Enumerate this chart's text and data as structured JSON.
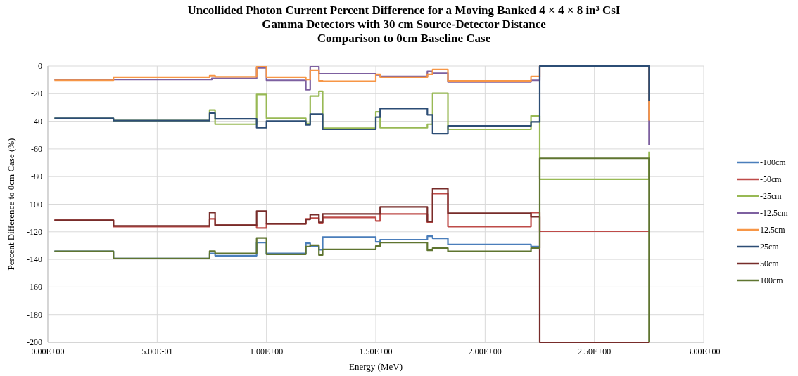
{
  "chart_data": {
    "type": "step",
    "title": "Uncollided Photon Current Percent Difference for a Moving Banked 4 × 4 × 8 in³ CsI Gamma Detectors with 30 cm Source-Detector Distance",
    "subtitle": "Comparison to 0cm Baseline Case",
    "xlabel": "Energy (MeV)",
    "ylabel": "Percent Difference to 0cm Case (%)",
    "xlim": [
      0,
      3
    ],
    "xticks": [
      {
        "value": 0,
        "label": "0.00E+00"
      },
      {
        "value": 0.5,
        "label": "5.00E-01"
      },
      {
        "value": 1,
        "label": "1.00E+00"
      },
      {
        "value": 1.5,
        "label": "1.50E+00"
      },
      {
        "value": 2,
        "label": "2.00E+00"
      },
      {
        "value": 2.5,
        "label": "2.50E+00"
      },
      {
        "value": 3,
        "label": "3.00E+00"
      }
    ],
    "ylim": [
      -200,
      0
    ],
    "yticks": [
      -200,
      -180,
      -160,
      -140,
      -120,
      -100,
      -80,
      -60,
      -40,
      -20,
      0
    ],
    "grid": true,
    "legend": "right",
    "series": [
      {
        "name": "-100cm",
        "color": "#4a7ebb",
        "x": [
          0.03,
          0.3,
          0.74,
          0.75,
          0.765,
          0.955,
          1.0,
          1.18,
          1.2,
          1.24,
          1.257,
          1.5,
          1.52,
          1.736,
          1.76,
          1.83,
          2.21,
          2.25
        ],
        "values": [
          -134.2,
          -139.3,
          -135.7,
          -135.7,
          -137.3,
          -127.8,
          -135.7,
          -128.3,
          -130.7,
          -133,
          -123.8,
          -127.3,
          -125.7,
          -123.2,
          -124.7,
          -129.2,
          -130.7,
          -130.7
        ]
      },
      {
        "name": "-50cm",
        "color": "#be4b48",
        "x": [
          0.03,
          0.3,
          0.74,
          0.75,
          0.765,
          0.955,
          1.0,
          1.18,
          1.2,
          1.24,
          1.257,
          1.5,
          1.52,
          1.736,
          1.76,
          1.83,
          2.21,
          2.25,
          2.75
        ],
        "values": [
          -111.6,
          -116.2,
          -110.6,
          -110.6,
          -115.2,
          -117.2,
          -114.2,
          -110.6,
          -110.1,
          -114,
          -109.6,
          -112.1,
          -107.1,
          -113.2,
          -92.3,
          -116.2,
          -106,
          -119.6,
          -119.6
        ]
      },
      {
        "name": "-25cm",
        "color": "#98b954",
        "x": [
          0.03,
          0.3,
          0.74,
          0.75,
          0.765,
          0.955,
          1.0,
          1.18,
          1.2,
          1.24,
          1.257,
          1.5,
          1.52,
          1.736,
          1.76,
          1.83,
          2.21,
          2.25,
          2.75
        ],
        "values": [
          -38,
          -39.5,
          -31.9,
          -31.9,
          -42.1,
          -20.5,
          -37.8,
          -41.6,
          -21.7,
          -18.3,
          -44.9,
          -33.1,
          -44.6,
          -42.1,
          -19.7,
          -45.8,
          -36.1,
          -81.9,
          -62
        ]
      },
      {
        "name": "-12.5cm",
        "color": "#7d60a0",
        "x": [
          0.03,
          0.3,
          0.74,
          0.75,
          0.765,
          0.955,
          1.0,
          1.18,
          1.2,
          1.24,
          1.257,
          1.5,
          1.52,
          1.736,
          1.76,
          1.83,
          2.21,
          2.25,
          2.75
        ],
        "values": [
          -9.8,
          -9.8,
          -9.8,
          -9,
          -9,
          -1.4,
          -10.3,
          -17.1,
          -0.5,
          -5.6,
          -5.6,
          -6.4,
          -7.6,
          -3.9,
          -5.3,
          -11.5,
          -10.3,
          0,
          -57
        ]
      },
      {
        "name": "12.5cm",
        "color": "#f79646",
        "x": [
          0.03,
          0.3,
          0.74,
          0.75,
          0.765,
          0.955,
          1.0,
          1.18,
          1.2,
          1.24,
          1.257,
          1.5,
          1.52,
          1.736,
          1.76,
          1.83,
          2.21,
          2.25,
          2.75
        ],
        "values": [
          -10.3,
          -8.1,
          -7,
          -7,
          -7.8,
          -0.5,
          -8.1,
          -9.8,
          -3,
          -10.7,
          -11,
          -6,
          -8.1,
          -6,
          -2.5,
          -10.7,
          -7.6,
          0,
          -39.5
        ]
      },
      {
        "name": "25cm",
        "color": "#2c4d75",
        "x": [
          0.03,
          0.3,
          0.74,
          0.75,
          0.765,
          0.955,
          1.0,
          1.18,
          1.2,
          1.24,
          1.257,
          1.5,
          1.52,
          1.736,
          1.76,
          1.83,
          2.21,
          2.25,
          2.75
        ],
        "values": [
          -37.8,
          -39.5,
          -34.1,
          -34.1,
          -38.2,
          -44.6,
          -39.9,
          -42.6,
          -34.8,
          -34.8,
          -45.8,
          -37,
          -30.7,
          -35.3,
          -48.9,
          -43.3,
          -40.4,
          0,
          -25
        ]
      },
      {
        "name": "50cm",
        "color": "#772c2a",
        "x": [
          0.03,
          0.3,
          0.74,
          0.75,
          0.765,
          0.955,
          1.0,
          1.18,
          1.2,
          1.24,
          1.257,
          1.5,
          1.52,
          1.736,
          1.76,
          1.83,
          2.21,
          2.25,
          2.75
        ],
        "values": [
          -111.6,
          -115.7,
          -106,
          -106,
          -115.2,
          -105,
          -114.2,
          -111,
          -107.6,
          -113.2,
          -107.1,
          -107.1,
          -102,
          -112.6,
          -88.8,
          -106.6,
          -109.1,
          -200,
          -200
        ]
      },
      {
        "name": "100cm",
        "color": "#5f7530",
        "x": [
          0.03,
          0.3,
          0.74,
          0.75,
          0.765,
          0.955,
          1.0,
          1.18,
          1.2,
          1.24,
          1.257,
          1.5,
          1.52,
          1.736,
          1.76,
          1.83,
          2.21,
          2.25,
          2.75
        ],
        "values": [
          -134.2,
          -139.3,
          -134,
          -134,
          -135.7,
          -124.5,
          -136.3,
          -130.7,
          -129.7,
          -136.9,
          -132.8,
          -130.3,
          -127.8,
          -133.4,
          -131.8,
          -134.2,
          -131.8,
          -66.8,
          -200
        ]
      }
    ]
  }
}
